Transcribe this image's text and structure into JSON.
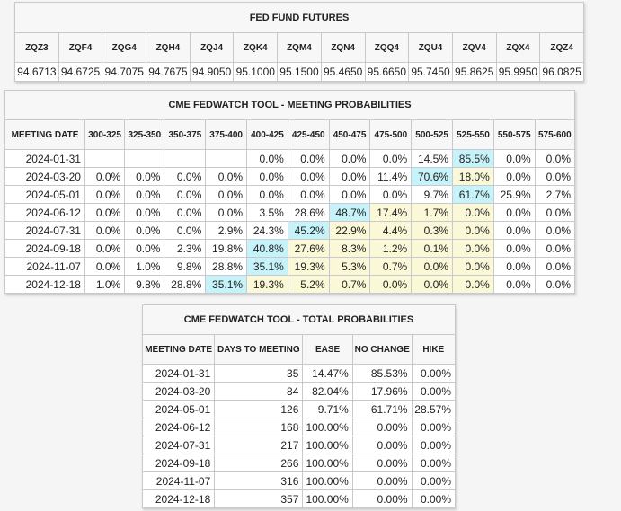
{
  "fed_fund_futures": {
    "title": "FED FUND FUTURES",
    "columns": [
      "ZQZ3",
      "ZQF4",
      "ZQG4",
      "ZQH4",
      "ZQJ4",
      "ZQK4",
      "ZQM4",
      "ZQN4",
      "ZQQ4",
      "ZQU4",
      "ZQV4",
      "ZQX4",
      "ZQZ4"
    ],
    "values": [
      "94.6713",
      "94.6725",
      "94.7075",
      "94.7675",
      "94.9050",
      "95.1000",
      "95.1500",
      "95.4650",
      "95.6650",
      "95.7450",
      "95.8625",
      "95.9950",
      "96.0825"
    ]
  },
  "meeting_probabilities": {
    "title": "CME FEDWATCH TOOL - MEETING PROBABILITIES",
    "columns": [
      "MEETING DATE",
      "300-325",
      "325-350",
      "350-375",
      "375-400",
      "400-425",
      "425-450",
      "450-475",
      "475-500",
      "500-525",
      "525-550",
      "550-575",
      "575-600"
    ],
    "rows": [
      {
        "date": "2024-01-31",
        "values": [
          "",
          "",
          "",
          "",
          "0.0%",
          "0.0%",
          "0.0%",
          "0.0%",
          "14.5%",
          "85.5%",
          "0.0%",
          "0.0%"
        ],
        "highlight": [
          "",
          "",
          "",
          "",
          "",
          "",
          "",
          "",
          "",
          "blue",
          "",
          ""
        ]
      },
      {
        "date": "2024-03-20",
        "values": [
          "0.0%",
          "0.0%",
          "0.0%",
          "0.0%",
          "0.0%",
          "0.0%",
          "0.0%",
          "11.4%",
          "70.6%",
          "18.0%",
          "0.0%",
          "0.0%"
        ],
        "highlight": [
          "",
          "",
          "",
          "",
          "",
          "",
          "",
          "",
          "blue",
          "yellow",
          "",
          ""
        ]
      },
      {
        "date": "2024-05-01",
        "values": [
          "0.0%",
          "0.0%",
          "0.0%",
          "0.0%",
          "0.0%",
          "0.0%",
          "0.0%",
          "0.0%",
          "9.7%",
          "61.7%",
          "25.9%",
          "2.7%"
        ],
        "highlight": [
          "",
          "",
          "",
          "",
          "",
          "",
          "",
          "",
          "",
          "blue",
          "",
          ""
        ]
      },
      {
        "date": "2024-06-12",
        "values": [
          "0.0%",
          "0.0%",
          "0.0%",
          "0.0%",
          "3.5%",
          "28.6%",
          "48.7%",
          "17.4%",
          "1.7%",
          "0.0%",
          "0.0%",
          "0.0%"
        ],
        "highlight": [
          "",
          "",
          "",
          "",
          "",
          "",
          "blue",
          "yellow",
          "yellow",
          "yellow",
          "",
          ""
        ]
      },
      {
        "date": "2024-07-31",
        "values": [
          "0.0%",
          "0.0%",
          "0.0%",
          "2.9%",
          "24.3%",
          "45.2%",
          "22.9%",
          "4.4%",
          "0.3%",
          "0.0%",
          "0.0%",
          "0.0%"
        ],
        "highlight": [
          "",
          "",
          "",
          "",
          "",
          "blue",
          "yellow",
          "yellow",
          "yellow",
          "yellow",
          "",
          ""
        ]
      },
      {
        "date": "2024-09-18",
        "values": [
          "0.0%",
          "0.0%",
          "2.3%",
          "19.8%",
          "40.8%",
          "27.6%",
          "8.3%",
          "1.2%",
          "0.1%",
          "0.0%",
          "0.0%",
          "0.0%"
        ],
        "highlight": [
          "",
          "",
          "",
          "",
          "blue",
          "yellow",
          "yellow",
          "yellow",
          "yellow",
          "yellow",
          "",
          ""
        ]
      },
      {
        "date": "2024-11-07",
        "values": [
          "0.0%",
          "1.0%",
          "9.8%",
          "28.8%",
          "35.1%",
          "19.3%",
          "5.3%",
          "0.7%",
          "0.0%",
          "0.0%",
          "0.0%",
          "0.0%"
        ],
        "highlight": [
          "",
          "",
          "",
          "",
          "blue",
          "yellow",
          "yellow",
          "yellow",
          "yellow",
          "yellow",
          "",
          ""
        ]
      },
      {
        "date": "2024-12-18",
        "values": [
          "1.0%",
          "9.8%",
          "28.8%",
          "35.1%",
          "19.3%",
          "5.2%",
          "0.7%",
          "0.0%",
          "0.0%",
          "0.0%",
          "0.0%",
          "0.0%"
        ],
        "highlight": [
          "",
          "",
          "",
          "blue",
          "yellow",
          "yellow",
          "yellow",
          "yellow",
          "yellow",
          "yellow",
          "",
          ""
        ]
      }
    ]
  },
  "total_probabilities": {
    "title": "CME FEDWATCH TOOL - TOTAL PROBABILITIES",
    "columns": [
      "MEETING DATE",
      "DAYS TO MEETING",
      "EASE",
      "NO CHANGE",
      "HIKE"
    ],
    "rows": [
      [
        "2024-01-31",
        "35",
        "14.47%",
        "85.53%",
        "0.00%"
      ],
      [
        "2024-03-20",
        "84",
        "82.04%",
        "17.96%",
        "0.00%"
      ],
      [
        "2024-05-01",
        "126",
        "9.71%",
        "61.71%",
        "28.57%"
      ],
      [
        "2024-06-12",
        "168",
        "100.00%",
        "0.00%",
        "0.00%"
      ],
      [
        "2024-07-31",
        "217",
        "100.00%",
        "0.00%",
        "0.00%"
      ],
      [
        "2024-09-18",
        "266",
        "100.00%",
        "0.00%",
        "0.00%"
      ],
      [
        "2024-11-07",
        "316",
        "100.00%",
        "0.00%",
        "0.00%"
      ],
      [
        "2024-12-18",
        "357",
        "100.00%",
        "0.00%",
        "0.00%"
      ]
    ]
  },
  "colors": {
    "highlight_max": "#c6f2fa",
    "highlight_ease": "#fbf8d7",
    "header_bg": "#f7f7f7",
    "border": "#c8c8d0",
    "page_bg": "#f5f5f5"
  }
}
